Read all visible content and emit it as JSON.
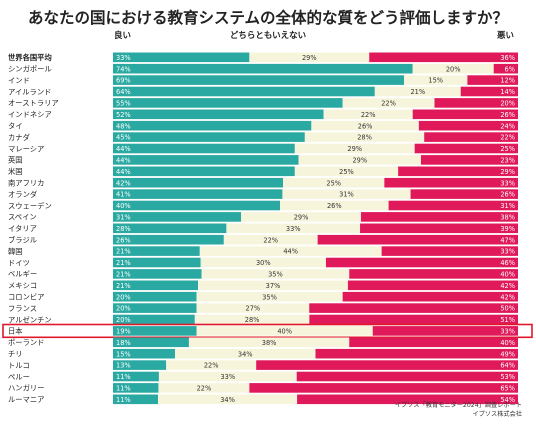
{
  "title": "あなたの国における教育システムの全体的な質をどう評価しますか？",
  "header": {
    "good": "良い",
    "neutral": "どちらともいえない",
    "bad": "悪い"
  },
  "source": [
    "イプソス「教育モニター2024」調査レポート",
    "イプソス株式会社"
  ],
  "colors": {
    "good": "#2aa9a2",
    "neutral": "#f7f4dc",
    "bad": "#e0195a",
    "highlight": "#e0192a"
  },
  "highlight_country": "日本",
  "chart_data": {
    "type": "bar",
    "stacked": true,
    "orientation": "horizontal",
    "value_unit": "%",
    "categories": [
      "世界各国平均",
      "シンガポール",
      "インド",
      "アイルランド",
      "オーストラリア",
      "インドネシア",
      "タイ",
      "カナダ",
      "マレーシア",
      "英国",
      "米国",
      "南アフリカ",
      "オランダ",
      "スウェーデン",
      "スペイン",
      "イタリア",
      "ブラジル",
      "韓国",
      "ドイツ",
      "ベルギー",
      "メキシコ",
      "コロンビア",
      "フランス",
      "アルゼンチン",
      "日本",
      "ポーランド",
      "チリ",
      "トルコ",
      "ペルー",
      "ハンガリー",
      "ルーマニア"
    ],
    "series": [
      {
        "name": "良い",
        "values": [
          33,
          74,
          69,
          64,
          55,
          52,
          48,
          45,
          44,
          44,
          44,
          42,
          41,
          40,
          31,
          28,
          26,
          21,
          21,
          21,
          21,
          20,
          20,
          20,
          19,
          18,
          15,
          13,
          11,
          11,
          11
        ]
      },
      {
        "name": "どちらともいえない",
        "values": [
          29,
          20,
          15,
          21,
          22,
          22,
          26,
          28,
          29,
          29,
          25,
          25,
          31,
          26,
          29,
          33,
          22,
          44,
          30,
          35,
          37,
          35,
          27,
          28,
          40,
          38,
          34,
          22,
          33,
          22,
          34
        ]
      },
      {
        "name": "悪い",
        "values": [
          36,
          6,
          12,
          14,
          20,
          26,
          24,
          22,
          25,
          23,
          29,
          33,
          26,
          31,
          38,
          39,
          47,
          33,
          46,
          40,
          42,
          42,
          50,
          51,
          33,
          40,
          49,
          64,
          53,
          65,
          54
        ]
      }
    ]
  }
}
